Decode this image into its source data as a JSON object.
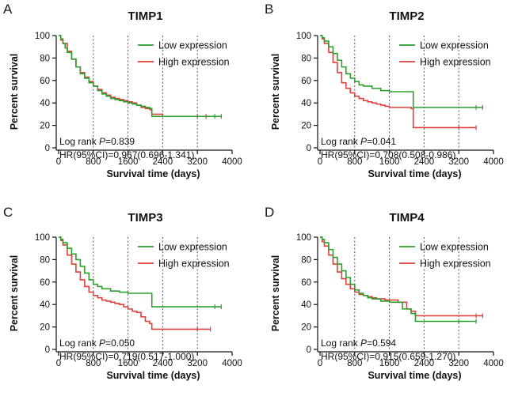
{
  "colors": {
    "low": "#2ca02c",
    "high": "#e0403c"
  },
  "chart_data": [
    {
      "type": "line",
      "letter": "A",
      "title": "TIMP1",
      "xlabel": "Survival time (days)",
      "ylabel": "Percent survival",
      "xlim": [
        0,
        4000
      ],
      "ylim": [
        0,
        100
      ],
      "xticks": [
        0,
        800,
        1600,
        2400,
        3200,
        4000
      ],
      "yticks": [
        0,
        20,
        40,
        60,
        80,
        100
      ],
      "grid": true,
      "legend_position": "top-right",
      "stat_line1_prefix": "Log rank ",
      "stat_p_symbol": "P",
      "stat_p_value": "=0.839",
      "stat_line2": "HR(95%CI)=0.967(0.696-1.341)",
      "series": [
        {
          "name": "Low expression",
          "color_key": "low",
          "x": [
            0,
            50,
            100,
            150,
            200,
            300,
            400,
            500,
            600,
            700,
            800,
            900,
            1000,
            1100,
            1200,
            1300,
            1400,
            1500,
            1600,
            1700,
            1800,
            1900,
            2000,
            2100,
            2150,
            2400,
            2800,
            3200,
            3600,
            3750
          ],
          "y": [
            100,
            97,
            93,
            89,
            85,
            79,
            72,
            66,
            62,
            58,
            55,
            51,
            48,
            46,
            44,
            43,
            42,
            41,
            40,
            39,
            38,
            37,
            36,
            35,
            28,
            28,
            28,
            28,
            28,
            28
          ]
        },
        {
          "name": "High expression",
          "color_key": "high",
          "x": [
            0,
            50,
            100,
            200,
            300,
            400,
            500,
            600,
            700,
            800,
            900,
            1000,
            1100,
            1200,
            1300,
            1400,
            1500,
            1600,
            1700,
            1800,
            1900,
            2000,
            2100,
            2150,
            2400,
            2800,
            3200,
            3400
          ],
          "y": [
            100,
            96,
            93,
            86,
            79,
            72,
            67,
            63,
            59,
            55,
            52,
            49,
            47,
            45,
            44,
            43,
            42,
            41,
            40,
            38,
            36,
            35,
            34,
            30,
            28,
            28,
            28,
            28
          ]
        }
      ]
    },
    {
      "type": "line",
      "letter": "B",
      "title": "TIMP2",
      "xlabel": "Survival time (days)",
      "ylabel": "Percent survival",
      "xlim": [
        0,
        4000
      ],
      "ylim": [
        0,
        100
      ],
      "xticks": [
        0,
        800,
        1600,
        2400,
        3200,
        4000
      ],
      "yticks": [
        0,
        20,
        40,
        60,
        80,
        100
      ],
      "grid": true,
      "legend_position": "top-right",
      "stat_line1_prefix": "Log rank ",
      "stat_p_symbol": "P",
      "stat_p_value": "=0.041",
      "stat_line2": "HR(95%CI)=0.708(0.508-0.986)",
      "series": [
        {
          "name": "Low expression",
          "color_key": "low",
          "x": [
            0,
            50,
            100,
            200,
            300,
            400,
            500,
            600,
            700,
            800,
            900,
            1000,
            1200,
            1400,
            1600,
            1800,
            2000,
            2100,
            2150,
            2400,
            2800,
            3200,
            3600,
            3750
          ],
          "y": [
            100,
            98,
            95,
            90,
            84,
            78,
            72,
            66,
            62,
            59,
            56,
            55,
            53,
            51,
            50,
            50,
            50,
            50,
            36,
            36,
            36,
            36,
            36,
            36
          ]
        },
        {
          "name": "High expression",
          "color_key": "high",
          "x": [
            0,
            50,
            100,
            200,
            300,
            400,
            500,
            600,
            700,
            800,
            900,
            1000,
            1100,
            1200,
            1300,
            1400,
            1500,
            1600,
            1800,
            2000,
            2100,
            2150,
            2400,
            2800,
            3200,
            3600
          ],
          "y": [
            100,
            97,
            93,
            85,
            76,
            67,
            58,
            53,
            49,
            46,
            44,
            42,
            41,
            40,
            39,
            38,
            37,
            36,
            36,
            36,
            35,
            18,
            18,
            18,
            18,
            18
          ]
        }
      ]
    },
    {
      "type": "line",
      "letter": "C",
      "title": "TIMP3",
      "xlabel": "Survival time (days)",
      "ylabel": "Percent survival",
      "xlim": [
        0,
        4000
      ],
      "ylim": [
        0,
        100
      ],
      "xticks": [
        0,
        800,
        1600,
        2400,
        3200,
        4000
      ],
      "yticks": [
        0,
        20,
        40,
        60,
        80,
        100
      ],
      "grid": true,
      "legend_position": "top-right",
      "stat_line1_prefix": "Log rank ",
      "stat_p_symbol": "P",
      "stat_p_value": "=0.050",
      "stat_line2": "HR(95%CI)=0.719(0.517-1.000)",
      "series": [
        {
          "name": "Low expression",
          "color_key": "low",
          "x": [
            0,
            50,
            100,
            200,
            300,
            400,
            500,
            600,
            700,
            800,
            900,
            1000,
            1200,
            1400,
            1600,
            1800,
            2000,
            2100,
            2150,
            2400,
            2800,
            3200,
            3600,
            3750
          ],
          "y": [
            100,
            98,
            95,
            90,
            85,
            80,
            74,
            68,
            62,
            58,
            56,
            54,
            52,
            51,
            50,
            50,
            50,
            50,
            38,
            38,
            38,
            38,
            38,
            38
          ]
        },
        {
          "name": "High expression",
          "color_key": "high",
          "x": [
            0,
            50,
            100,
            200,
            300,
            400,
            500,
            600,
            700,
            800,
            900,
            1000,
            1100,
            1200,
            1300,
            1400,
            1500,
            1600,
            1700,
            1800,
            1900,
            2000,
            2100,
            2150,
            2400,
            2800,
            3200,
            3500
          ],
          "y": [
            100,
            97,
            93,
            84,
            76,
            69,
            62,
            56,
            51,
            48,
            46,
            44,
            43,
            42,
            41,
            40,
            38,
            36,
            34,
            33,
            29,
            25,
            23,
            18,
            18,
            18,
            18,
            18
          ]
        }
      ]
    },
    {
      "type": "line",
      "letter": "D",
      "title": "TIMP4",
      "xlabel": "Survival time (days)",
      "ylabel": "Percent survival",
      "xlim": [
        0,
        4000
      ],
      "ylim": [
        0,
        100
      ],
      "xticks": [
        0,
        800,
        1600,
        2400,
        3200,
        4000
      ],
      "yticks": [
        0,
        20,
        40,
        60,
        80,
        100
      ],
      "grid": true,
      "legend_position": "top-right",
      "stat_line1_prefix": "Log rank ",
      "stat_p_symbol": "P",
      "stat_p_value": "=0.594",
      "stat_line2": "HR(95%CI)=0.915(0.659-1.270)",
      "series": [
        {
          "name": "Low expression",
          "color_key": "low",
          "x": [
            0,
            50,
            100,
            200,
            300,
            400,
            500,
            600,
            700,
            800,
            900,
            1000,
            1100,
            1200,
            1400,
            1600,
            1800,
            1900,
            2000,
            2100,
            2200,
            2400,
            2800,
            3200,
            3600
          ],
          "y": [
            100,
            98,
            95,
            89,
            82,
            76,
            70,
            64,
            58,
            53,
            50,
            48,
            46,
            45,
            43,
            42,
            42,
            36,
            36,
            32,
            25,
            25,
            25,
            25,
            25
          ]
        },
        {
          "name": "High expression",
          "color_key": "high",
          "x": [
            0,
            50,
            100,
            200,
            300,
            400,
            500,
            600,
            700,
            800,
            900,
            1000,
            1100,
            1200,
            1300,
            1400,
            1500,
            1600,
            1800,
            2000,
            2100,
            2200,
            2400,
            2800,
            3200,
            3600,
            3750
          ],
          "y": [
            100,
            96,
            92,
            84,
            76,
            69,
            63,
            58,
            54,
            51,
            49,
            48,
            47,
            46,
            45,
            45,
            44,
            44,
            42,
            36,
            34,
            30,
            30,
            30,
            30,
            30,
            30
          ]
        }
      ]
    }
  ]
}
